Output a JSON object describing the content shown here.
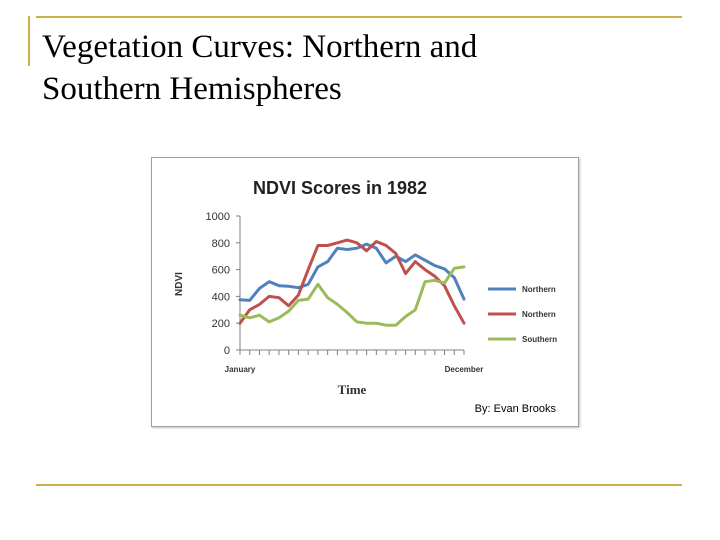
{
  "slide": {
    "title_line1": "Vegetation Curves: Northern and",
    "title_line2": "Southern Hemispheres"
  },
  "credit": "By: Evan Brooks",
  "colors": {
    "rule": "#c9b04a",
    "blue": "#4f81bd",
    "red": "#c0504d",
    "green": "#9bbb59"
  },
  "chart_data": {
    "type": "line",
    "title": "NDVI Scores in 1982",
    "xlabel": "Time",
    "ylabel": "NDVI",
    "ylim": [
      0,
      1000
    ],
    "yticks": [
      0,
      200,
      400,
      600,
      800,
      1000
    ],
    "x_tick_labels": [
      {
        "index": 0,
        "label": "January"
      },
      {
        "index": 23,
        "label": "December"
      }
    ],
    "grid": false,
    "legend_position": "right",
    "series": [
      {
        "name": "Northern",
        "color": "#4f81bd",
        "values": [
          375,
          370,
          460,
          510,
          480,
          475,
          465,
          490,
          620,
          660,
          760,
          750,
          760,
          790,
          760,
          650,
          700,
          660,
          710,
          670,
          630,
          605,
          540,
          380
        ]
      },
      {
        "name": "Northern",
        "color": "#c0504d",
        "values": [
          200,
          300,
          340,
          400,
          390,
          330,
          410,
          600,
          780,
          780,
          800,
          820,
          800,
          740,
          810,
          780,
          720,
          570,
          660,
          600,
          550,
          480,
          330,
          200
        ]
      },
      {
        "name": "Southern",
        "color": "#9bbb59",
        "values": [
          260,
          240,
          260,
          210,
          240,
          290,
          370,
          380,
          490,
          390,
          340,
          280,
          210,
          200,
          200,
          185,
          185,
          250,
          300,
          510,
          520,
          500,
          610,
          620
        ]
      }
    ]
  }
}
